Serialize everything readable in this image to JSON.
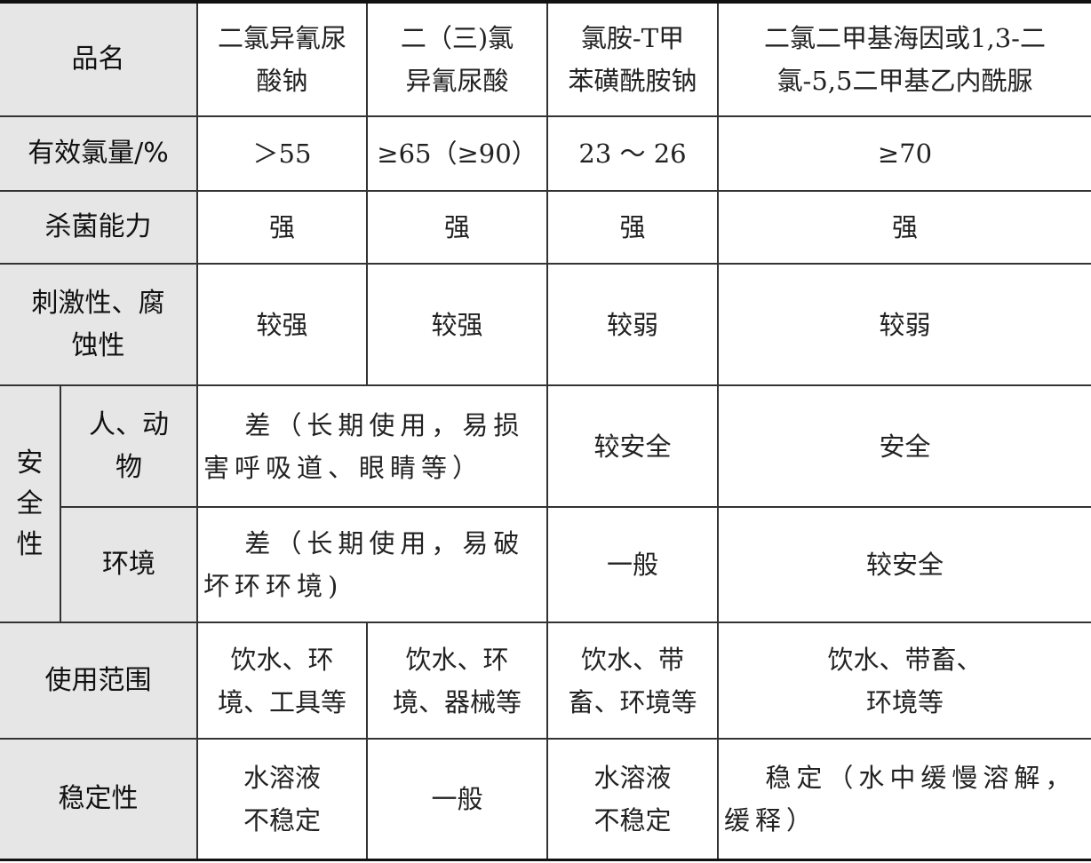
{
  "table": {
    "header": {
      "label": "品名",
      "cols": [
        "二氯异氰尿\n酸钠",
        "二（三)氯\n异氰尿酸",
        "氯胺-T甲\n苯磺酰胺钠",
        "二氯二甲基海因或1,3-二\n氯-5,5二甲基乙内酰脲"
      ]
    },
    "rows": [
      {
        "label": "有效氯量/%",
        "cells": [
          "＞55",
          "≥65（≥90）",
          "23 ～ 26",
          "≥70"
        ]
      },
      {
        "label": "杀菌能力",
        "cells": [
          "强",
          "强",
          "强",
          "强"
        ]
      },
      {
        "label": "刺激性、腐\n蚀性",
        "cells": [
          "较强",
          "较强",
          "较弱",
          "较弱"
        ]
      }
    ],
    "safety": {
      "label": "安\n全\n性",
      "rows": [
        {
          "label": "人、动\n物",
          "cells": [
            "差（长期使用，易损害呼吸道、眼睛等）",
            "较安全",
            "安全"
          ]
        },
        {
          "label": "环境",
          "cells": [
            "差（长期使用，易破坏环环境)",
            "一般",
            "较安全"
          ]
        }
      ]
    },
    "usage": {
      "label": "使用范围",
      "cells": [
        "饮水、环\n境、工具等",
        "饮水、环\n境、器械等",
        "饮水、带\n畜、环境等",
        "饮水、带畜、\n环境等"
      ]
    },
    "stability": {
      "label": "稳定性",
      "cells": [
        "水溶液\n不稳定",
        "一般",
        "水溶液\n不稳定",
        "稳定（水中缓慢溶解，缓释）"
      ]
    }
  }
}
